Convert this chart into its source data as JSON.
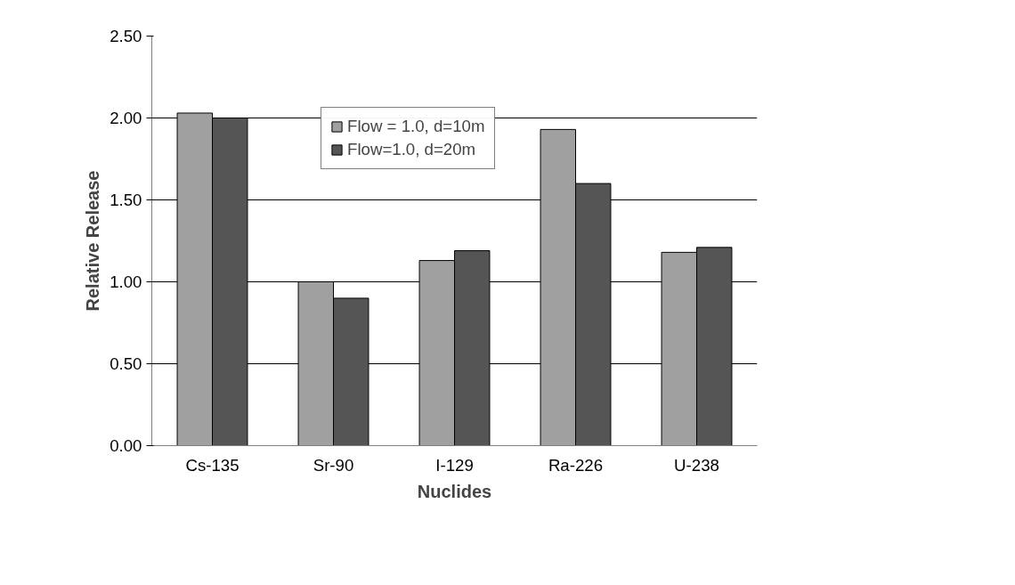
{
  "chart_data": {
    "type": "bar",
    "xlabel": "Nuclides",
    "ylabel": "Relative Release",
    "categories": [
      "Cs-135",
      "Sr-90",
      "I-129",
      "Ra-226",
      "U-238"
    ],
    "series": [
      {
        "name": "Flow = 1.0, d=10m",
        "color": "#a0a0a0",
        "values": [
          2.03,
          1.0,
          1.13,
          1.93,
          1.18
        ]
      },
      {
        "name": "Flow=1.0, d=20m",
        "color": "#555555",
        "values": [
          2.0,
          0.9,
          1.19,
          1.6,
          1.21
        ]
      }
    ],
    "ylim": [
      0,
      2.5
    ],
    "yticks": [
      {
        "value": 0,
        "label": "0.00"
      },
      {
        "value": 0.5,
        "label": "0.50"
      },
      {
        "value": 1,
        "label": "1.00"
      },
      {
        "value": 1.5,
        "label": "1.50"
      },
      {
        "value": 2,
        "label": "2.00"
      },
      {
        "value": 2.5,
        "label": "2.50"
      }
    ],
    "grid": "y",
    "legend": "top"
  }
}
